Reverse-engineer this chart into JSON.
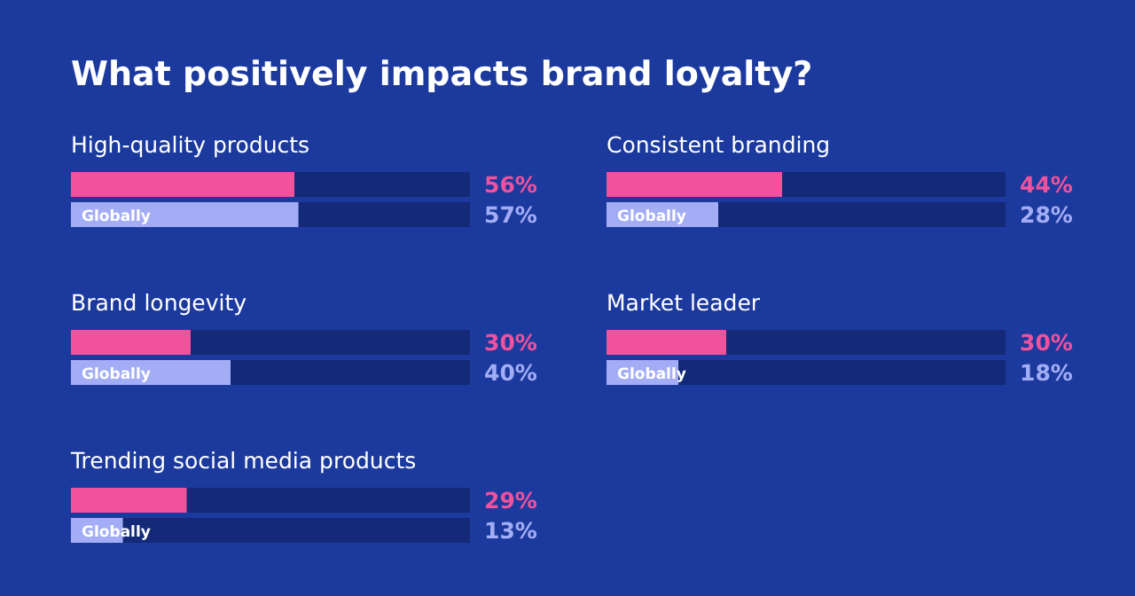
{
  "chart_data": [
    {
      "type": "bar",
      "orientation": "horizontal",
      "title": "What positively impacts brand loyalty?",
      "subtitle": "High-quality products",
      "categories": [
        null,
        "Globally"
      ],
      "xlim": [
        0,
        100
      ],
      "values": [
        56,
        57
      ],
      "colors": [
        "#f0529c",
        "#a3adf5"
      ],
      "value_labels": [
        "56%",
        "57%"
      ]
    },
    {
      "type": "bar",
      "orientation": "horizontal",
      "subtitle": "Consistent branding",
      "categories": [
        null,
        "Globally"
      ],
      "xlim": [
        0,
        100
      ],
      "values": [
        44,
        28
      ],
      "colors": [
        "#f0529c",
        "#a3adf5"
      ],
      "value_labels": [
        "44%",
        "28%"
      ]
    },
    {
      "type": "bar",
      "orientation": "horizontal",
      "subtitle": "Brand longevity",
      "categories": [
        null,
        "Globally"
      ],
      "xlim": [
        0,
        100
      ],
      "values": [
        30,
        40
      ],
      "colors": [
        "#f0529c",
        "#a3adf5"
      ],
      "value_labels": [
        "30%",
        "40%"
      ]
    },
    {
      "type": "bar",
      "orientation": "horizontal",
      "subtitle": "Market leader",
      "categories": [
        null,
        "Globally"
      ],
      "xlim": [
        0,
        100
      ],
      "values": [
        30,
        18
      ],
      "colors": [
        "#f0529c",
        "#a3adf5"
      ],
      "value_labels": [
        "30%",
        "18%"
      ]
    },
    {
      "type": "bar",
      "orientation": "horizontal",
      "subtitle": "Trending social media products",
      "categories": [
        null,
        "Globally"
      ],
      "xlim": [
        0,
        100
      ],
      "values": [
        29,
        13
      ],
      "colors": [
        "#f0529c",
        "#a3adf5"
      ],
      "value_labels": [
        "29%",
        "13%"
      ]
    }
  ]
}
